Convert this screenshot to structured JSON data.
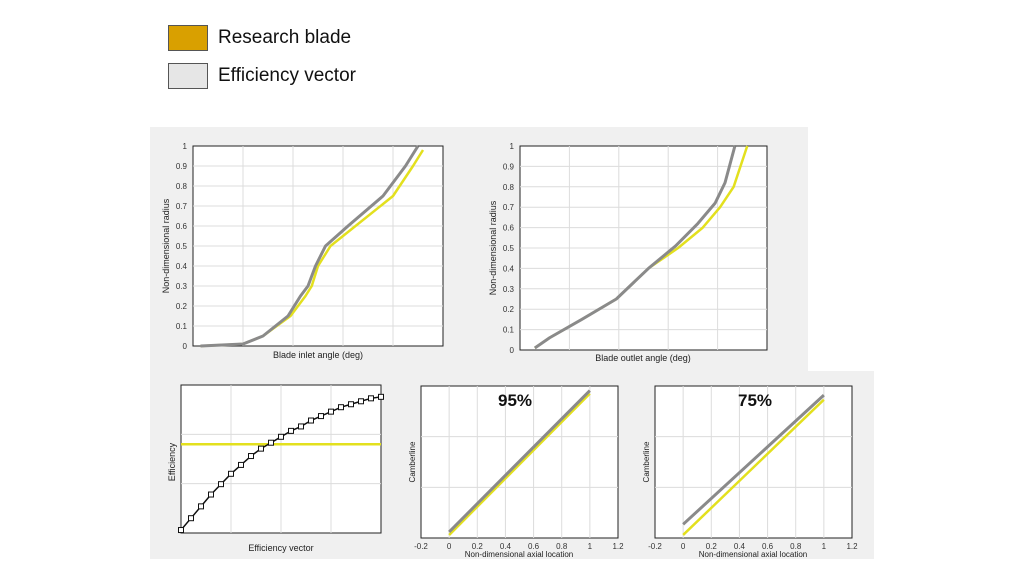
{
  "legend": {
    "items": [
      {
        "label": "Research blade",
        "color": "#d9a000"
      },
      {
        "label": "Efficiency vector",
        "color": "#e6e6e6"
      }
    ]
  },
  "series_colors": {
    "research": "#e3e01e",
    "efficiency": "#8a8a8a",
    "markers": "#111111"
  },
  "chart_data": [
    {
      "id": "inlet",
      "type": "line",
      "xlabel": "Blade inlet angle (deg)",
      "ylabel": "Non-dimensional radius",
      "ylim": [
        0,
        1
      ],
      "yticks": [
        "0",
        "0.1",
        "0.2",
        "0.3",
        "0.4",
        "0.5",
        "0.6",
        "0.7",
        "0.8",
        "0.9",
        "1"
      ],
      "xlim": [
        0,
        1
      ],
      "grid": true,
      "series": [
        {
          "x": [
            0.03,
            0.2,
            0.28,
            0.39,
            0.45,
            0.475,
            0.5,
            0.55,
            0.65,
            0.8,
            0.88,
            0.92
          ],
          "y": [
            0,
            0.01,
            0.05,
            0.15,
            0.25,
            0.3,
            0.4,
            0.5,
            0.6,
            0.75,
            0.9,
            0.98
          ]
        },
        {
          "x": [
            0.03,
            0.2,
            0.28,
            0.38,
            0.43,
            0.46,
            0.49,
            0.53,
            0.62,
            0.76,
            0.85,
            0.9
          ],
          "y": [
            0,
            0.01,
            0.05,
            0.15,
            0.25,
            0.3,
            0.4,
            0.5,
            0.6,
            0.75,
            0.9,
            1
          ]
        }
      ]
    },
    {
      "id": "outlet",
      "type": "line",
      "xlabel": "Blade outlet angle (deg)",
      "ylabel": "Non-dimensional radius",
      "ylim": [
        0,
        1
      ],
      "yticks": [
        "0",
        "0.1",
        "0.2",
        "0.3",
        "0.4",
        "0.5",
        "0.6",
        "0.7",
        "0.8",
        "0.9",
        "1"
      ],
      "xlim": [
        0,
        1
      ],
      "grid": true,
      "series": [
        {
          "x": [
            0.06,
            0.12,
            0.25,
            0.39,
            0.52,
            0.64,
            0.74,
            0.81,
            0.865,
            0.92
          ],
          "y": [
            0.01,
            0.06,
            0.15,
            0.25,
            0.4,
            0.5,
            0.6,
            0.7,
            0.8,
            1
          ]
        },
        {
          "x": [
            0.06,
            0.12,
            0.25,
            0.39,
            0.52,
            0.63,
            0.72,
            0.79,
            0.83,
            0.87
          ],
          "y": [
            0.01,
            0.06,
            0.15,
            0.25,
            0.4,
            0.51,
            0.62,
            0.72,
            0.82,
            1
          ]
        }
      ]
    },
    {
      "id": "efficiency",
      "type": "line",
      "xlabel": "Efficiency vector",
      "ylabel": "Efficiency",
      "xlim": [
        0,
        1
      ],
      "ylim": [
        0,
        1
      ],
      "grid": true,
      "research_level": 0.6,
      "series": [
        {
          "x": [
            0,
            0.05,
            0.1,
            0.15,
            0.2,
            0.25,
            0.3,
            0.35,
            0.4,
            0.45,
            0.5,
            0.55,
            0.6,
            0.65,
            0.7,
            0.75,
            0.8,
            0.85,
            0.9,
            0.95,
            1
          ],
          "y": [
            0.02,
            0.1,
            0.18,
            0.26,
            0.33,
            0.4,
            0.46,
            0.52,
            0.57,
            0.61,
            0.65,
            0.69,
            0.72,
            0.76,
            0.79,
            0.82,
            0.85,
            0.87,
            0.89,
            0.91,
            0.92
          ]
        }
      ]
    },
    {
      "id": "camber95",
      "type": "line",
      "title": "95%",
      "xlabel": "Non-dimensional axial location",
      "ylabel": "Camberline",
      "xlim": [
        -0.2,
        1.2
      ],
      "xticks": [
        "-0.2",
        "0",
        "0.2",
        "0.4",
        "0.6",
        "0.8",
        "1",
        "1.2"
      ],
      "ylim": [
        0,
        1
      ],
      "grid": true,
      "series": [
        {
          "x": [
            0,
            1
          ],
          "y": [
            0.02,
            0.95
          ]
        },
        {
          "x": [
            0,
            1
          ],
          "y": [
            0.04,
            0.97
          ]
        }
      ]
    },
    {
      "id": "camber75",
      "type": "line",
      "title": "75%",
      "xlabel": "Non-dimensional axial location",
      "ylabel": "Camberline",
      "xlim": [
        -0.2,
        1.2
      ],
      "xticks": [
        "-0.2",
        "0",
        "0.2",
        "0.4",
        "0.6",
        "0.8",
        "1",
        "1.2"
      ],
      "ylim": [
        0,
        1
      ],
      "grid": true,
      "series": [
        {
          "x": [
            0,
            1
          ],
          "y": [
            0.02,
            0.91
          ]
        },
        {
          "x": [
            0,
            1
          ],
          "y": [
            0.09,
            0.94
          ]
        }
      ]
    }
  ]
}
